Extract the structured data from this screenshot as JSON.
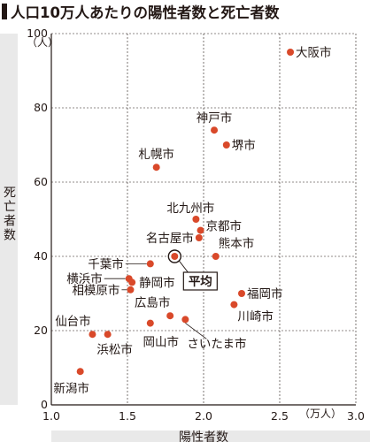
{
  "chart_data": {
    "type": "scatter",
    "title": "人口10万人あたりの陽性者数と死亡者数",
    "xlabel": "陽性者数",
    "ylabel": "死亡者数",
    "x_unit": "（万人）",
    "y_unit": "（人）",
    "xlim": [
      1.0,
      3.0
    ],
    "ylim": [
      0,
      100
    ],
    "xticks": [
      "1.0",
      "1.5",
      "2.0",
      "2.5",
      "3.0"
    ],
    "yticks": [
      "0",
      "20",
      "40",
      "60",
      "80",
      "100"
    ],
    "grid": true,
    "point_color": "#d9492a",
    "points": [
      {
        "name": "大阪市",
        "x": 2.57,
        "y": 95
      },
      {
        "name": "神戸市",
        "x": 2.07,
        "y": 74
      },
      {
        "name": "堺市",
        "x": 2.15,
        "y": 70
      },
      {
        "name": "札幌市",
        "x": 1.69,
        "y": 64
      },
      {
        "name": "北九州市",
        "x": 1.95,
        "y": 50
      },
      {
        "name": "京都市",
        "x": 1.98,
        "y": 47
      },
      {
        "name": "名古屋市",
        "x": 1.97,
        "y": 45
      },
      {
        "name": "熊本市",
        "x": 2.08,
        "y": 40
      },
      {
        "name": "千葉市",
        "x": 1.65,
        "y": 38
      },
      {
        "name": "横浜市",
        "x": 1.51,
        "y": 34
      },
      {
        "name": "静岡市",
        "x": 1.53,
        "y": 33
      },
      {
        "name": "相模原市",
        "x": 1.52,
        "y": 31
      },
      {
        "name": "福岡市",
        "x": 2.25,
        "y": 30
      },
      {
        "name": "川崎市",
        "x": 2.2,
        "y": 27
      },
      {
        "name": "広島市",
        "x": 1.78,
        "y": 24
      },
      {
        "name": "さいたま市",
        "x": 1.88,
        "y": 23
      },
      {
        "name": "岡山市",
        "x": 1.65,
        "y": 22
      },
      {
        "name": "仙台市",
        "x": 1.27,
        "y": 19
      },
      {
        "name": "浜松市",
        "x": 1.37,
        "y": 19
      },
      {
        "name": "新潟市",
        "x": 1.19,
        "y": 9
      }
    ],
    "average": {
      "name": "平均",
      "x": 1.81,
      "y": 40
    }
  }
}
